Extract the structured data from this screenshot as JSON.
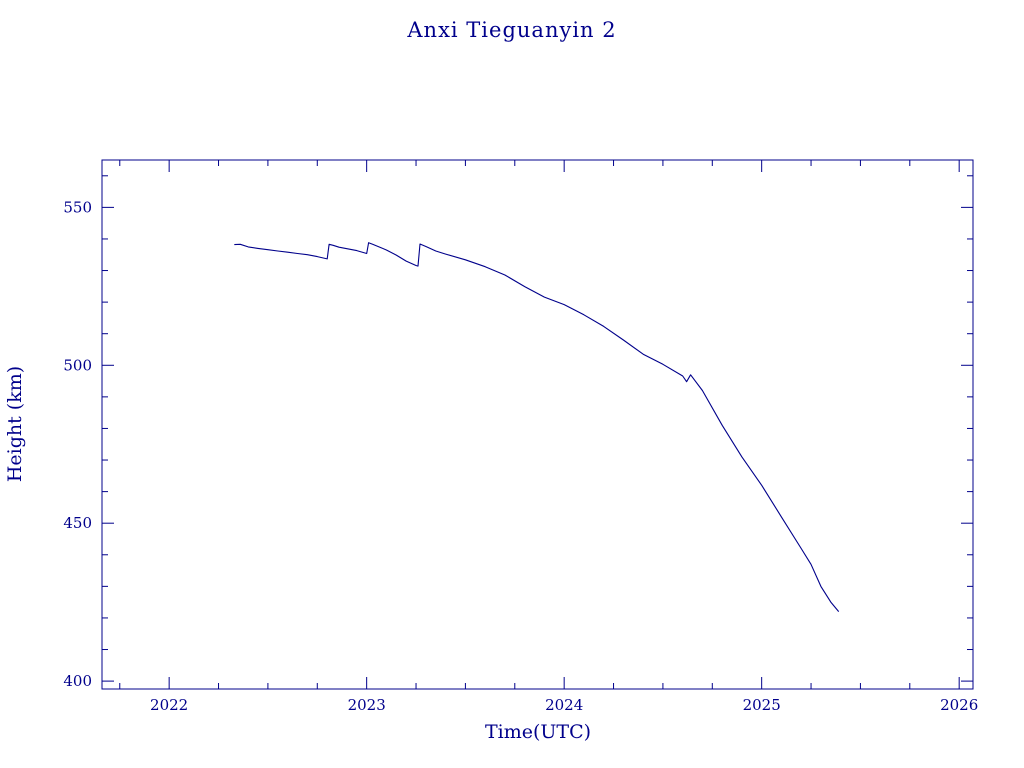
{
  "chart_data": {
    "type": "line",
    "title": "Anxi Tieguanyin 2",
    "xlabel": "Time(UTC)",
    "ylabel": "Height (km)",
    "xlim": [
      2021.66,
      2026.07
    ],
    "ylim": [
      397.5,
      565
    ],
    "x_ticks": [
      2022,
      2023,
      2024,
      2025,
      2026
    ],
    "y_ticks": [
      400,
      450,
      500,
      550
    ],
    "x_minor_step": 0.25,
    "y_minor_step": 10,
    "grid": false,
    "colors": {
      "foreground": "#00008b",
      "background": "#ffffff"
    },
    "series": [
      {
        "x": [
          2022.33,
          2022.36,
          2022.4,
          2022.45,
          2022.5,
          2022.55,
          2022.6,
          2022.65,
          2022.7,
          2022.75,
          2022.8,
          2022.81,
          2022.83,
          2022.86,
          2022.9,
          2022.95,
          2023.0,
          2023.01,
          2023.03,
          2023.07,
          2023.1,
          2023.15,
          2023.2,
          2023.25,
          2023.26,
          2023.27,
          2023.3,
          2023.35,
          2023.4,
          2023.5,
          2023.6,
          2023.7,
          2023.8,
          2023.9,
          2024.0,
          2024.1,
          2024.2,
          2024.3,
          2024.4,
          2024.5,
          2024.6,
          2024.62,
          2024.64,
          2024.7,
          2024.8,
          2024.9,
          2025.0,
          2025.1,
          2025.2,
          2025.25,
          2025.3,
          2025.35,
          2025.39
        ],
        "y": [
          538.2,
          538.3,
          537.5,
          537.0,
          536.6,
          536.2,
          535.8,
          535.4,
          535.0,
          534.4,
          533.7,
          538.3,
          538.0,
          537.4,
          536.9,
          536.3,
          535.4,
          538.8,
          538.3,
          537.3,
          536.5,
          534.9,
          533.0,
          531.6,
          531.4,
          538.4,
          537.6,
          536.2,
          535.2,
          533.4,
          531.2,
          528.6,
          524.9,
          521.6,
          519.2,
          516.0,
          512.3,
          508.0,
          503.5,
          500.3,
          496.6,
          494.8,
          497.0,
          492.0,
          481.0,
          471.0,
          462.0,
          452.0,
          442.0,
          437.0,
          430.0,
          425.0,
          422.0
        ]
      }
    ]
  }
}
